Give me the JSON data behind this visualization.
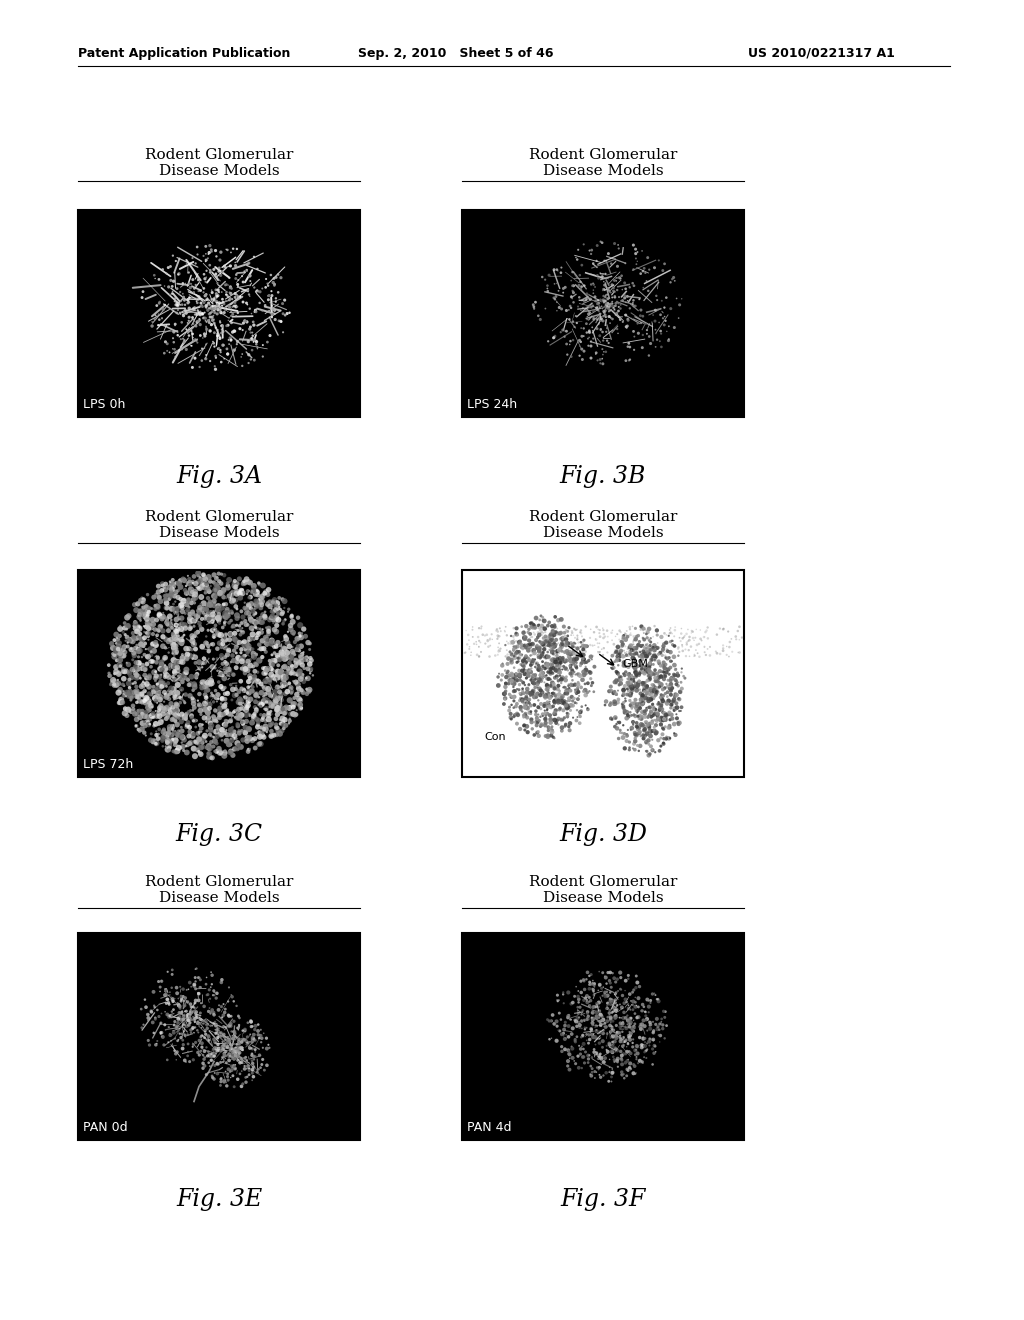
{
  "page_header_left": "Patent Application Publication",
  "page_header_center": "Sep. 2, 2010   Sheet 5 of 46",
  "page_header_right": "US 2010/0221317 A1",
  "background_color": "#ffffff",
  "panels": [
    {
      "label": "Fig. 3A",
      "title_line1": "Rodent Glomerular",
      "title_line2": "Disease Models",
      "image_label": "LPS 0h",
      "col": 0,
      "row": 0,
      "bg": "black",
      "style": "dark_glom_lps0"
    },
    {
      "label": "Fig. 3B",
      "title_line1": "Rodent Glomerular",
      "title_line2": "Disease Models",
      "image_label": "LPS 24h",
      "col": 1,
      "row": 0,
      "bg": "black",
      "style": "dark_glom_lps24"
    },
    {
      "label": "Fig. 3C",
      "title_line1": "Rodent Glomerular",
      "title_line2": "Disease Models",
      "image_label": "LPS 72h",
      "col": 0,
      "row": 1,
      "bg": "black",
      "style": "dark_glom_lps72"
    },
    {
      "label": "Fig. 3D",
      "title_line1": "Rodent Glomerular",
      "title_line2": "Disease Models",
      "image_label": "",
      "col": 1,
      "row": 1,
      "bg": "white",
      "style": "light_glom_gbm"
    },
    {
      "label": "Fig. 3E",
      "title_line1": "Rodent Glomerular",
      "title_line2": "Disease Models",
      "image_label": "PAN 0d",
      "col": 0,
      "row": 2,
      "bg": "black",
      "style": "dark_glom_pan0"
    },
    {
      "label": "Fig. 3F",
      "title_line1": "Rodent Glomerular",
      "title_line2": "Disease Models",
      "image_label": "PAN 4d",
      "col": 1,
      "row": 2,
      "bg": "black",
      "style": "dark_glom_pan4"
    }
  ],
  "title_fontsize": 11,
  "label_fontsize": 17,
  "header_fontsize": 9,
  "image_label_fontsize": 9
}
